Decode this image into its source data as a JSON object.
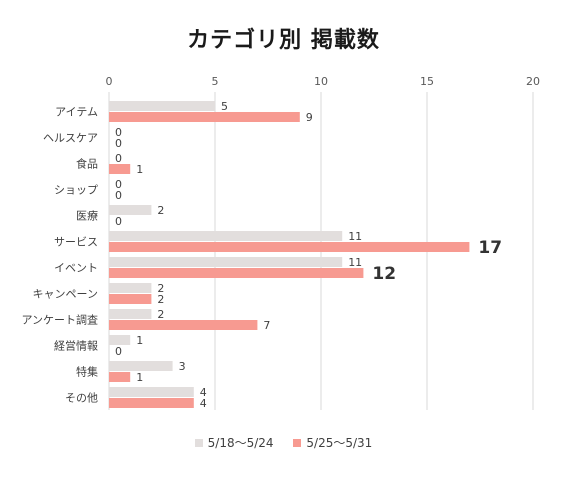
{
  "chart_data": {
    "type": "bar",
    "orientation": "horizontal",
    "title": "カテゴリ別 掲載数",
    "xlabel": "",
    "ylabel": "",
    "xlim": [
      0,
      20
    ],
    "ticks": [
      0,
      5,
      10,
      15,
      20
    ],
    "tick_labels": [
      "0",
      "5",
      "10",
      "15",
      "20"
    ],
    "grid": true,
    "legend_position": "bottom",
    "categories": [
      "アイテム",
      "ヘルスケア",
      "食品",
      "ショップ",
      "医療",
      "サービス",
      "イベント",
      "キャンペーン",
      "アンケート調査",
      "経営情報",
      "特集",
      "その他"
    ],
    "series": [
      {
        "name": "5/18～5/24",
        "color": "#e2dedd",
        "values": [
          5,
          0,
          0,
          0,
          2,
          11,
          11,
          2,
          2,
          1,
          3,
          4
        ],
        "labels": [
          "5",
          "0",
          "0",
          "0",
          "2",
          "11",
          "11",
          "2",
          "2",
          "1",
          "3",
          "4"
        ]
      },
      {
        "name": "5/25～5/31",
        "color": "#f79a91",
        "values": [
          9,
          0,
          1,
          0,
          0,
          17,
          12,
          2,
          7,
          0,
          1,
          4
        ],
        "labels": [
          "9",
          "0",
          "1",
          "0",
          "0",
          "17",
          "12",
          "2",
          "7",
          "0",
          "1",
          "4"
        ]
      }
    ],
    "emphasized_labels": [
      {
        "series": 1,
        "category": 5
      },
      {
        "series": 1,
        "category": 6
      }
    ]
  }
}
